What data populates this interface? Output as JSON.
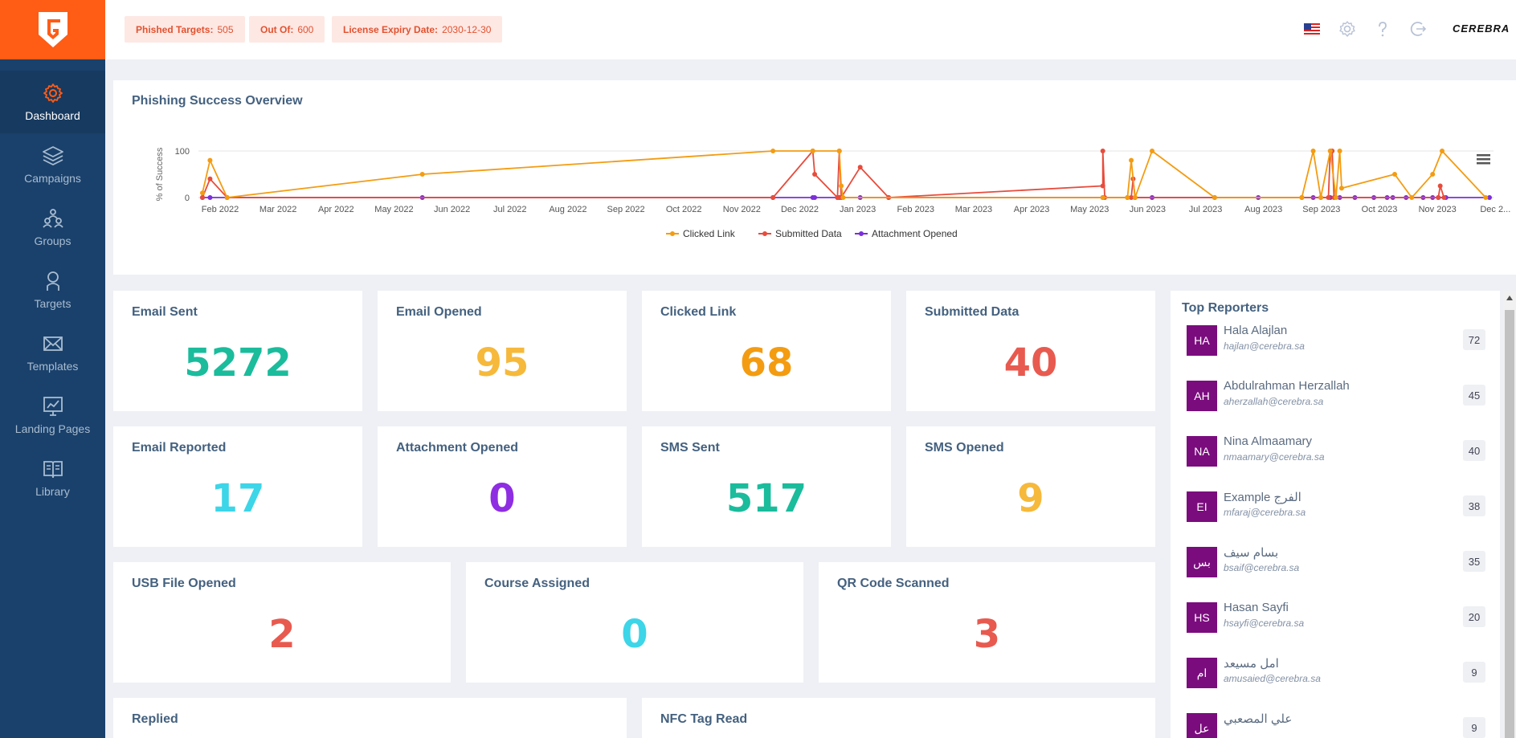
{
  "sidebar": {
    "items": [
      {
        "label": "Dashboard",
        "icon": "gear-icon"
      },
      {
        "label": "Campaigns",
        "icon": "layers-icon"
      },
      {
        "label": "Groups",
        "icon": "group-icon"
      },
      {
        "label": "Targets",
        "icon": "user-icon"
      },
      {
        "label": "Templates",
        "icon": "envelope-icon"
      },
      {
        "label": "Landing Pages",
        "icon": "chart-monitor-icon"
      },
      {
        "label": "Library",
        "icon": "book-icon"
      }
    ]
  },
  "topbar": {
    "phished_label": "Phished Targets:",
    "phished_value": "505",
    "outof_label": "Out Of:",
    "outof_value": "600",
    "license_label": "License Expiry Date:",
    "license_value": "2030-12-30",
    "brand": "CEREBRA",
    "icons": [
      "us-flag-icon",
      "settings-icon",
      "help-icon",
      "logout-icon"
    ]
  },
  "colors": {
    "accent": "#ff5c16",
    "sidebar": "#1a416b",
    "clicked": "#f39c12",
    "submitted": "#e74c3c",
    "attachment": "#7b2fd8",
    "green": "#1abc9c",
    "amber": "#f6b93b",
    "orange": "#f39c12",
    "red": "#e85a4f",
    "cyan": "#3dd5e8",
    "purple": "#8e2de2"
  },
  "chart_title": "Phishing Success Overview",
  "chart_data": {
    "type": "line",
    "ylabel": "% of Success",
    "ylim": [
      0,
      100
    ],
    "yticks": [
      "0",
      "100"
    ],
    "xticks": [
      "Feb 2022",
      "Mar 2022",
      "Apr 2022",
      "May 2022",
      "Jun 2022",
      "Jul 2022",
      "Aug 2022",
      "Sep 2022",
      "Oct 2022",
      "Nov 2022",
      "Dec 2022",
      "Jan 2023",
      "Feb 2023",
      "Mar 2023",
      "Apr 2023",
      "May 2023",
      "Jun 2023",
      "Jul 2023",
      "Aug 2023",
      "Sep 2023",
      "Oct 2023",
      "Nov 2023",
      "Dec 2..."
    ],
    "x_start": "2022-01-25",
    "x_end": "2023-12-05",
    "legend_position": "bottom",
    "series": [
      {
        "name": "Clicked Link",
        "points": [
          [
            "2022-01-25",
            10
          ],
          [
            "2022-01-29",
            80
          ],
          [
            "2022-02-07",
            0
          ],
          [
            "2022-05-21",
            50
          ],
          [
            "2022-11-22",
            100
          ],
          [
            "2022-12-13",
            100
          ],
          [
            "2022-12-27",
            100
          ],
          [
            "2022-12-28",
            25
          ],
          [
            "2022-12-29",
            0
          ],
          [
            "2023-05-15",
            0
          ],
          [
            "2023-05-28",
            0
          ],
          [
            "2023-05-30",
            80
          ],
          [
            "2023-06-01",
            0
          ],
          [
            "2023-06-10",
            100
          ],
          [
            "2023-07-13",
            0
          ],
          [
            "2023-08-28",
            0
          ],
          [
            "2023-09-03",
            100
          ],
          [
            "2023-09-07",
            0
          ],
          [
            "2023-09-12",
            100
          ],
          [
            "2023-09-15",
            0
          ],
          [
            "2023-09-17",
            100
          ],
          [
            "2023-09-18",
            20
          ],
          [
            "2023-10-16",
            50
          ],
          [
            "2023-10-25",
            0
          ],
          [
            "2023-11-05",
            50
          ],
          [
            "2023-11-10",
            100
          ],
          [
            "2023-12-03",
            0
          ]
        ]
      },
      {
        "name": "Submitted Data",
        "points": [
          [
            "2022-01-25",
            0
          ],
          [
            "2022-01-29",
            40
          ],
          [
            "2022-02-07",
            0
          ],
          [
            "2022-11-22",
            0
          ],
          [
            "2022-12-13",
            100
          ],
          [
            "2022-12-14",
            50
          ],
          [
            "2022-12-26",
            0
          ],
          [
            "2022-12-27",
            100
          ],
          [
            "2022-12-28",
            0
          ],
          [
            "2023-01-07",
            65
          ],
          [
            "2023-01-22",
            0
          ],
          [
            "2023-05-15",
            25
          ],
          [
            "2023-05-15",
            100
          ],
          [
            "2023-05-16",
            0
          ],
          [
            "2023-05-30",
            0
          ],
          [
            "2023-05-31",
            40
          ],
          [
            "2023-06-01",
            0
          ],
          [
            "2023-09-11",
            0
          ],
          [
            "2023-09-12",
            100
          ],
          [
            "2023-09-13",
            100
          ],
          [
            "2023-09-14",
            0
          ],
          [
            "2023-11-08",
            0
          ],
          [
            "2023-11-09",
            25
          ],
          [
            "2023-11-11",
            0
          ]
        ]
      },
      {
        "name": "Attachment Opened",
        "points": [
          [
            "2022-01-25",
            0
          ],
          [
            "2022-01-29",
            0
          ],
          [
            "2022-02-07",
            0
          ],
          [
            "2022-05-21",
            0
          ],
          [
            "2022-11-22",
            0
          ],
          [
            "2022-12-13",
            0
          ],
          [
            "2022-12-14",
            0
          ],
          [
            "2022-12-26",
            0
          ],
          [
            "2022-12-27",
            0
          ],
          [
            "2022-12-28",
            0
          ],
          [
            "2023-01-07",
            0
          ],
          [
            "2023-01-22",
            0
          ],
          [
            "2023-05-15",
            0
          ],
          [
            "2023-05-28",
            0
          ],
          [
            "2023-06-01",
            0
          ],
          [
            "2023-06-10",
            0
          ],
          [
            "2023-07-13",
            0
          ],
          [
            "2023-08-05",
            0
          ],
          [
            "2023-08-28",
            0
          ],
          [
            "2023-09-03",
            0
          ],
          [
            "2023-09-07",
            0
          ],
          [
            "2023-09-12",
            0
          ],
          [
            "2023-09-17",
            0
          ],
          [
            "2023-09-25",
            0
          ],
          [
            "2023-10-05",
            0
          ],
          [
            "2023-10-12",
            0
          ],
          [
            "2023-10-15",
            0
          ],
          [
            "2023-10-22",
            0
          ],
          [
            "2023-10-31",
            0
          ],
          [
            "2023-11-05",
            0
          ],
          [
            "2023-11-08",
            0
          ],
          [
            "2023-11-12",
            0
          ],
          [
            "2023-12-05",
            0
          ]
        ]
      }
    ]
  },
  "stats": [
    {
      "title": "Email Sent",
      "value": "5272",
      "color": "#1abc9c"
    },
    {
      "title": "Email Opened",
      "value": "95",
      "color": "#f6b93b"
    },
    {
      "title": "Clicked Link",
      "value": "68",
      "color": "#f39c12"
    },
    {
      "title": "Submitted Data",
      "value": "40",
      "color": "#e85a4f"
    },
    {
      "title": "Email Reported",
      "value": "17",
      "color": "#3dd5e8"
    },
    {
      "title": "Attachment Opened",
      "value": "0",
      "color": "#8e2de2"
    },
    {
      "title": "SMS Sent",
      "value": "517",
      "color": "#1abc9c"
    },
    {
      "title": "SMS Opened",
      "value": "9",
      "color": "#f6b93b"
    },
    {
      "title": "USB File Opened",
      "value": "2",
      "color": "#e85a4f"
    },
    {
      "title": "Course Assigned",
      "value": "0",
      "color": "#3dd5e8"
    },
    {
      "title": "QR Code Scanned",
      "value": "3",
      "color": "#e85a4f"
    },
    {
      "title": "Replied",
      "value": "",
      "color": "#1abc9c"
    },
    {
      "title": "NFC Tag Read",
      "value": "",
      "color": "#1abc9c"
    }
  ],
  "reporters": {
    "title": "Top Reporters",
    "items": [
      {
        "initials": "HA",
        "name": "Hala Alajlan",
        "email": "hajlan@cerebra.sa",
        "count": "72"
      },
      {
        "initials": "AH",
        "name": "Abdulrahman Herzallah",
        "email": "aherzallah@cerebra.sa",
        "count": "45"
      },
      {
        "initials": "NA",
        "name": "Nina Almaamary",
        "email": "nmaamary@cerebra.sa",
        "count": "40"
      },
      {
        "initials": "EI",
        "name": "Example الفرج",
        "email": "mfaraj@cerebra.sa",
        "count": "38"
      },
      {
        "initials": "بس",
        "name": "بسام سيف",
        "email": "bsaif@cerebra.sa",
        "count": "35"
      },
      {
        "initials": "HS",
        "name": "Hasan Sayfi",
        "email": "hsayfi@cerebra.sa",
        "count": "20"
      },
      {
        "initials": "ام",
        "name": "امل مسيعد",
        "email": "amusaied@cerebra.sa",
        "count": "9"
      },
      {
        "initials": "عل",
        "name": "علي المصعبي",
        "email": "",
        "count": "9"
      }
    ]
  }
}
